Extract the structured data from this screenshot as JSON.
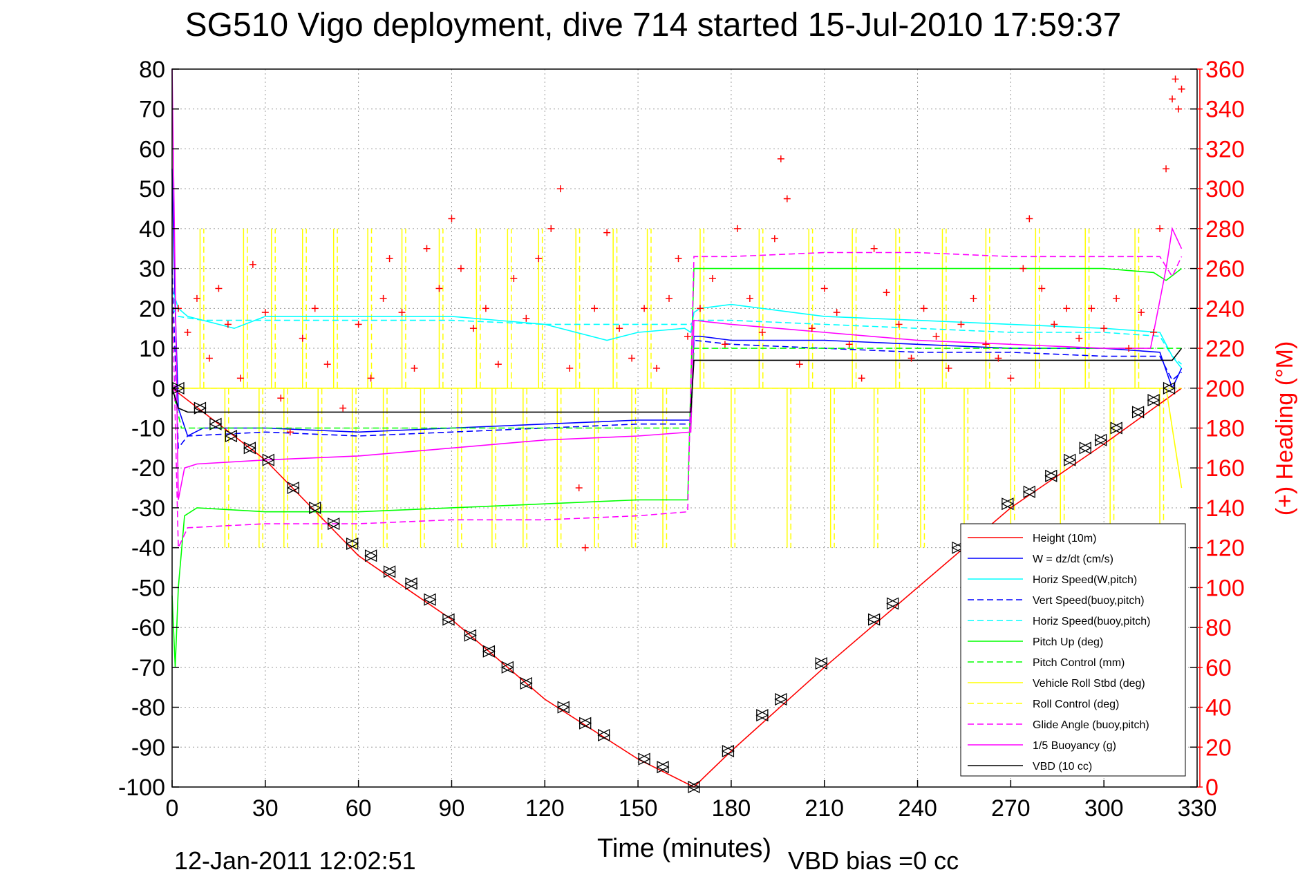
{
  "page": {
    "title": "SG510 Vigo deployment, dive 714 started 15-Jul-2010 17:59:37",
    "generated": "12-Jan-2011 12:02:51",
    "vbd_bias": "VBD bias =0 cc"
  },
  "colors": {
    "height": "#ff0000",
    "w": "#0000ff",
    "hspeed": "#00ffff",
    "pitch": "#00ff00",
    "roll": "#ffff00",
    "glide": "#ff00ff",
    "buoyancy": "#ff00ff",
    "vbd": "#000000",
    "heading": "#ff0000"
  },
  "chart_data": {
    "type": "line",
    "title": "SG510 Vigo deployment, dive 714 started 15-Jul-2010 17:59:37",
    "xlabel": "Time (minutes)",
    "ylabel": "",
    "y2label": "(+) Heading (°M)",
    "xlim": [
      0,
      330
    ],
    "ylim": [
      -100,
      80
    ],
    "y2lim": [
      0,
      360
    ],
    "xticks": [
      0,
      30,
      60,
      90,
      120,
      150,
      180,
      210,
      240,
      270,
      300,
      330
    ],
    "yticks": [
      80,
      70,
      60,
      50,
      40,
      30,
      20,
      10,
      0,
      -10,
      -20,
      -30,
      -40,
      -50,
      -60,
      -70,
      -80,
      -90,
      -100
    ],
    "y2ticks": [
      360,
      340,
      320,
      300,
      280,
      260,
      240,
      220,
      200,
      180,
      160,
      140,
      120,
      100,
      80,
      60,
      40,
      20,
      0
    ],
    "grid": true,
    "legend_position": "bottom-right",
    "series": [
      {
        "name": "Height (10m)",
        "color": "#ff0000",
        "dash": "solid",
        "x": [
          0,
          30,
          60,
          90,
          120,
          150,
          168,
          180,
          210,
          240,
          270,
          300,
          325
        ],
        "y": [
          0,
          -18,
          -42,
          -58,
          -78,
          -93,
          -100,
          -91,
          -70,
          -50,
          -30,
          -14,
          0
        ]
      },
      {
        "name": "W = dz/dt (cm/s)",
        "color": "#0000ff",
        "dash": "solid",
        "x": [
          0,
          1,
          2,
          5,
          10,
          30,
          60,
          90,
          120,
          150,
          165,
          167,
          168,
          170,
          180,
          210,
          240,
          270,
          300,
          318,
          322,
          325
        ],
        "y": [
          55,
          20,
          -5,
          -12,
          -10,
          -10,
          -11,
          -10,
          -9,
          -8,
          -8,
          -8,
          13,
          13,
          12,
          12,
          11,
          10,
          10,
          9,
          0,
          5
        ]
      },
      {
        "name": "Horiz Speed(W,pitch)",
        "color": "#00ffff",
        "dash": "solid",
        "x": [
          0,
          2,
          5,
          10,
          20,
          30,
          60,
          90,
          120,
          140,
          150,
          165,
          167,
          168,
          170,
          180,
          210,
          240,
          270,
          300,
          318,
          322,
          325
        ],
        "y": [
          25,
          20,
          18,
          17,
          15,
          18,
          18,
          18,
          16,
          12,
          14,
          15,
          14,
          19,
          20,
          21,
          18,
          17,
          16,
          15,
          14,
          8,
          5
        ]
      },
      {
        "name": "Vert Speed(buoy,pitch)",
        "color": "#0000ff",
        "dash": "dashed",
        "x": [
          0,
          2,
          5,
          30,
          60,
          90,
          120,
          150,
          167,
          168,
          180,
          210,
          240,
          270,
          300,
          318,
          322,
          325
        ],
        "y": [
          30,
          -15,
          -12,
          -11,
          -12,
          -11,
          -10,
          -9,
          -9,
          12,
          11,
          10,
          9,
          9,
          8,
          8,
          2,
          4
        ]
      },
      {
        "name": "Horiz Speed(buoy,pitch)",
        "color": "#00ffff",
        "dash": "dashed",
        "x": [
          0,
          2,
          10,
          30,
          60,
          90,
          120,
          150,
          167,
          168,
          180,
          210,
          240,
          270,
          300,
          318,
          322,
          325
        ],
        "y": [
          20,
          18,
          17,
          17,
          17,
          17,
          16,
          16,
          16,
          17,
          17,
          16,
          15,
          14,
          14,
          13,
          8,
          6
        ]
      },
      {
        "name": "Pitch Up (deg)",
        "color": "#00ff00",
        "dash": "solid",
        "x": [
          0,
          1,
          2,
          4,
          8,
          30,
          60,
          90,
          120,
          150,
          166,
          168,
          170,
          180,
          210,
          240,
          270,
          300,
          316,
          320,
          325
        ],
        "y": [
          -52,
          -70,
          -50,
          -32,
          -30,
          -31,
          -31,
          -30,
          -29,
          -28,
          -28,
          30,
          30,
          30,
          30,
          30,
          30,
          30,
          29,
          27,
          30
        ]
      },
      {
        "name": "Pitch Control (mm)",
        "color": "#00ff00",
        "dash": "dashed",
        "x": [
          0,
          3,
          167,
          168,
          325
        ],
        "y": [
          0,
          -10,
          -10,
          10,
          10
        ]
      },
      {
        "name": "Vehicle Roll Stbd (deg)",
        "color": "#ffff00",
        "dash": "solid",
        "x": [
          0,
          20,
          60,
          100,
          140,
          170,
          200,
          240,
          280,
          320,
          325
        ],
        "y": [
          0,
          0,
          0,
          0,
          0,
          0,
          0,
          0,
          0,
          0,
          -25
        ]
      },
      {
        "name": "Roll Control (deg)",
        "color": "#ffff00",
        "dash": "dashed",
        "x": [
          0,
          325
        ],
        "y": [
          0,
          0
        ]
      },
      {
        "name": "Glide Angle (buoy,pitch)",
        "color": "#ff00ff",
        "dash": "dashed",
        "x": [
          0,
          2,
          5,
          30,
          60,
          90,
          120,
          150,
          166,
          168,
          180,
          210,
          240,
          270,
          300,
          318,
          322,
          325
        ],
        "y": [
          25,
          -40,
          -35,
          -34,
          -34,
          -33,
          -33,
          -32,
          -31,
          33,
          33,
          34,
          34,
          33,
          33,
          33,
          28,
          33
        ]
      },
      {
        "name": "1/5 Buoyancy (g)",
        "color": "#ff00ff",
        "dash": "solid",
        "x": [
          0,
          2,
          4,
          8,
          30,
          60,
          90,
          120,
          150,
          167,
          168,
          180,
          210,
          240,
          270,
          300,
          315,
          320,
          322,
          325
        ],
        "y": [
          80,
          -28,
          -20,
          -19,
          -18,
          -17,
          -15,
          -13,
          -12,
          -11,
          17,
          16,
          14,
          12,
          11,
          10,
          10,
          30,
          40,
          35
        ]
      },
      {
        "name": "VBD (10 cc)",
        "color": "#000000",
        "dash": "solid",
        "x": [
          0,
          2,
          5,
          167,
          168,
          200,
          240,
          270,
          300,
          322,
          325
        ],
        "y": [
          0,
          -5,
          -6,
          -6,
          7,
          7,
          7,
          7,
          7,
          7,
          10
        ]
      }
    ],
    "heading_points": [
      {
        "x": 2,
        "y": 240
      },
      {
        "x": 5,
        "y": 228
      },
      {
        "x": 8,
        "y": 245
      },
      {
        "x": 12,
        "y": 215
      },
      {
        "x": 15,
        "y": 250
      },
      {
        "x": 18,
        "y": 232
      },
      {
        "x": 22,
        "y": 205
      },
      {
        "x": 26,
        "y": 262
      },
      {
        "x": 30,
        "y": 238
      },
      {
        "x": 35,
        "y": 195
      },
      {
        "x": 38,
        "y": 178
      },
      {
        "x": 42,
        "y": 225
      },
      {
        "x": 46,
        "y": 240
      },
      {
        "x": 50,
        "y": 212
      },
      {
        "x": 55,
        "y": 190
      },
      {
        "x": 60,
        "y": 232
      },
      {
        "x": 64,
        "y": 205
      },
      {
        "x": 68,
        "y": 245
      },
      {
        "x": 70,
        "y": 265
      },
      {
        "x": 74,
        "y": 238
      },
      {
        "x": 78,
        "y": 210
      },
      {
        "x": 82,
        "y": 270
      },
      {
        "x": 86,
        "y": 250
      },
      {
        "x": 90,
        "y": 285
      },
      {
        "x": 93,
        "y": 260
      },
      {
        "x": 97,
        "y": 230
      },
      {
        "x": 101,
        "y": 240
      },
      {
        "x": 105,
        "y": 212
      },
      {
        "x": 110,
        "y": 255
      },
      {
        "x": 114,
        "y": 235
      },
      {
        "x": 118,
        "y": 265
      },
      {
        "x": 122,
        "y": 280
      },
      {
        "x": 125,
        "y": 300
      },
      {
        "x": 128,
        "y": 210
      },
      {
        "x": 131,
        "y": 150
      },
      {
        "x": 133,
        "y": 120
      },
      {
        "x": 136,
        "y": 240
      },
      {
        "x": 140,
        "y": 278
      },
      {
        "x": 144,
        "y": 230
      },
      {
        "x": 148,
        "y": 215
      },
      {
        "x": 152,
        "y": 240
      },
      {
        "x": 156,
        "y": 210
      },
      {
        "x": 160,
        "y": 245
      },
      {
        "x": 163,
        "y": 265
      },
      {
        "x": 166,
        "y": 226
      },
      {
        "x": 170,
        "y": 240
      },
      {
        "x": 174,
        "y": 255
      },
      {
        "x": 178,
        "y": 222
      },
      {
        "x": 182,
        "y": 280
      },
      {
        "x": 186,
        "y": 245
      },
      {
        "x": 190,
        "y": 228
      },
      {
        "x": 194,
        "y": 275
      },
      {
        "x": 196,
        "y": 315
      },
      {
        "x": 198,
        "y": 295
      },
      {
        "x": 202,
        "y": 212
      },
      {
        "x": 206,
        "y": 230
      },
      {
        "x": 210,
        "y": 250
      },
      {
        "x": 214,
        "y": 238
      },
      {
        "x": 218,
        "y": 222
      },
      {
        "x": 222,
        "y": 205
      },
      {
        "x": 226,
        "y": 270
      },
      {
        "x": 230,
        "y": 248
      },
      {
        "x": 234,
        "y": 232
      },
      {
        "x": 238,
        "y": 215
      },
      {
        "x": 242,
        "y": 240
      },
      {
        "x": 246,
        "y": 226
      },
      {
        "x": 250,
        "y": 210
      },
      {
        "x": 254,
        "y": 232
      },
      {
        "x": 258,
        "y": 245
      },
      {
        "x": 262,
        "y": 222
      },
      {
        "x": 266,
        "y": 215
      },
      {
        "x": 270,
        "y": 205
      },
      {
        "x": 274,
        "y": 260
      },
      {
        "x": 276,
        "y": 285
      },
      {
        "x": 280,
        "y": 250
      },
      {
        "x": 284,
        "y": 232
      },
      {
        "x": 288,
        "y": 240
      },
      {
        "x": 292,
        "y": 225
      },
      {
        "x": 296,
        "y": 240
      },
      {
        "x": 300,
        "y": 230
      },
      {
        "x": 304,
        "y": 245
      },
      {
        "x": 308,
        "y": 220
      },
      {
        "x": 312,
        "y": 238
      },
      {
        "x": 316,
        "y": 228
      },
      {
        "x": 318,
        "y": 280
      },
      {
        "x": 320,
        "y": 310
      },
      {
        "x": 322,
        "y": 345
      },
      {
        "x": 323,
        "y": 355
      },
      {
        "x": 324,
        "y": 340
      },
      {
        "x": 325,
        "y": 350
      }
    ],
    "depth_markers": [
      {
        "x": 2,
        "y": 0
      },
      {
        "x": 9,
        "y": -5
      },
      {
        "x": 14,
        "y": -9
      },
      {
        "x": 19,
        "y": -12
      },
      {
        "x": 25,
        "y": -15
      },
      {
        "x": 31,
        "y": -18
      },
      {
        "x": 39,
        "y": -25
      },
      {
        "x": 46,
        "y": -30
      },
      {
        "x": 52,
        "y": -34
      },
      {
        "x": 58,
        "y": -39
      },
      {
        "x": 64,
        "y": -42
      },
      {
        "x": 70,
        "y": -46
      },
      {
        "x": 77,
        "y": -49
      },
      {
        "x": 83,
        "y": -53
      },
      {
        "x": 89,
        "y": -58
      },
      {
        "x": 96,
        "y": -62
      },
      {
        "x": 102,
        "y": -66
      },
      {
        "x": 108,
        "y": -70
      },
      {
        "x": 114,
        "y": -74
      },
      {
        "x": 126,
        "y": -80
      },
      {
        "x": 133,
        "y": -84
      },
      {
        "x": 139,
        "y": -87
      },
      {
        "x": 152,
        "y": -93
      },
      {
        "x": 158,
        "y": -95
      },
      {
        "x": 168,
        "y": -100
      },
      {
        "x": 179,
        "y": -91
      },
      {
        "x": 190,
        "y": -82
      },
      {
        "x": 196,
        "y": -78
      },
      {
        "x": 209,
        "y": -69
      },
      {
        "x": 226,
        "y": -58
      },
      {
        "x": 232,
        "y": -54
      },
      {
        "x": 253,
        "y": -40
      },
      {
        "x": 269,
        "y": -29
      },
      {
        "x": 276,
        "y": -26
      },
      {
        "x": 283,
        "y": -22
      },
      {
        "x": 289,
        "y": -18
      },
      {
        "x": 294,
        "y": -15
      },
      {
        "x": 299,
        "y": -13
      },
      {
        "x": 304,
        "y": -10
      },
      {
        "x": 311,
        "y": -6
      },
      {
        "x": 316,
        "y": -3
      },
      {
        "x": 321,
        "y": 0
      }
    ],
    "roll_spikes_x": [
      9,
      17,
      23,
      28,
      32,
      36,
      42,
      47,
      52,
      58,
      63,
      68,
      74,
      80,
      86,
      92,
      98,
      103,
      108,
      113,
      118,
      124,
      130,
      136,
      142,
      148,
      153,
      158,
      170,
      180,
      189,
      198,
      205,
      212,
      219,
      226,
      233,
      241,
      248,
      255,
      262,
      270,
      278,
      286,
      294,
      302,
      310,
      318
    ]
  }
}
